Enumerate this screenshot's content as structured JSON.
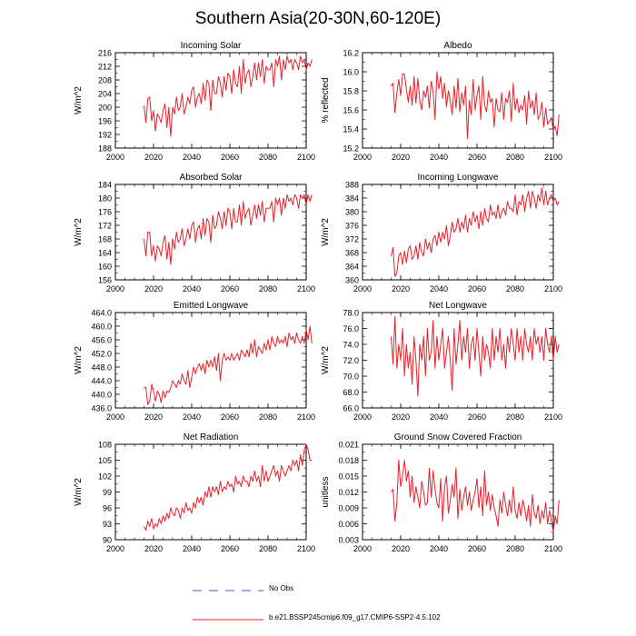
{
  "figure": {
    "title": "Southern Asia(20-30N,60-120E)",
    "legend": [
      {
        "label": "No Obs",
        "style": "dashed",
        "color": "#5a4fcf"
      },
      {
        "label": "b.e21.BSSP245cmip6.f09_g17.CMIP6-SSP2-4.5.102",
        "style": "solid",
        "color": "#e8212a"
      }
    ]
  },
  "chart_data": [
    {
      "type": "line",
      "title": "Incoming Solar",
      "ylabel": "W/m^2",
      "xlim": [
        2000,
        2100
      ],
      "ylim": [
        188,
        216
      ],
      "xticks": [
        "2000",
        "2020",
        "2040",
        "2060",
        "2080",
        "2100"
      ],
      "yticks": [
        "188",
        "192",
        "196",
        "200",
        "204",
        "208",
        "212",
        "216"
      ],
      "series": [
        {
          "name": "b.e21.BSSP245cmip6.f09_g17.CMIP6-SSP2-4.5.102",
          "color": "#e8212a",
          "x_start": 2015,
          "x_step": 1,
          "values": [
            200.5,
            195.5,
            202.5,
            203,
            196,
            199,
            193,
            198,
            197,
            195.5,
            199,
            201,
            194,
            200,
            191.5,
            200,
            198,
            203,
            199,
            200,
            204,
            198,
            200,
            203,
            201,
            205,
            206,
            200,
            203,
            204,
            201,
            207,
            202,
            208,
            207,
            199,
            208,
            204,
            204,
            209,
            207,
            203,
            209,
            205,
            210,
            209,
            204,
            211,
            207,
            206,
            212,
            204,
            214,
            207,
            210,
            211,
            206,
            209,
            213,
            208,
            213,
            209,
            214,
            207,
            212,
            211,
            211,
            213,
            206,
            214,
            212,
            215,
            208,
            214,
            211,
            215,
            213,
            214,
            211,
            214,
            213,
            211,
            215,
            213,
            214,
            211,
            213,
            212,
            214
          ]
        }
      ]
    },
    {
      "type": "line",
      "title": "Albedo",
      "ylabel": "% reflected",
      "xlim": [
        2000,
        2100
      ],
      "ylim": [
        15.2,
        16.2
      ],
      "xticks": [
        "2000",
        "2020",
        "2040",
        "2060",
        "2080",
        "2100"
      ],
      "yticks": [
        "15.2",
        "15.4",
        "15.6",
        "15.8",
        "16.0",
        "16.2"
      ],
      "series": [
        {
          "name": "b.e21.BSSP245cmip6.f09_g17.CMIP6-SSP2-4.5.102",
          "color": "#e8212a",
          "x_start": 2015,
          "x_step": 1,
          "values": [
            15.85,
            15.88,
            15.57,
            15.78,
            15.92,
            15.75,
            15.98,
            15.97,
            15.82,
            15.68,
            15.85,
            15.65,
            15.95,
            15.67,
            15.93,
            15.7,
            15.6,
            15.8,
            15.73,
            15.85,
            15.62,
            15.9,
            15.8,
            15.5,
            16.0,
            15.82,
            15.95,
            15.72,
            15.88,
            15.63,
            15.8,
            15.7,
            15.55,
            15.85,
            15.62,
            15.93,
            15.58,
            15.78,
            15.65,
            15.85,
            15.3,
            15.7,
            15.55,
            15.92,
            15.6,
            15.75,
            15.85,
            15.5,
            15.95,
            15.65,
            15.58,
            15.8,
            15.68,
            15.72,
            15.42,
            15.72,
            15.6,
            15.58,
            15.78,
            15.5,
            15.72,
            15.68,
            15.8,
            15.48,
            15.88,
            15.6,
            15.72,
            15.57,
            15.65,
            15.6,
            15.75,
            15.45,
            15.8,
            15.62,
            15.7,
            15.55,
            15.78,
            15.5,
            15.55,
            15.68,
            15.42,
            15.62,
            15.45,
            15.48,
            15.52,
            15.38,
            15.43,
            15.33,
            15.55
          ]
        }
      ]
    },
    {
      "type": "line",
      "title": "Absorbed Solar",
      "ylabel": "W/m^2",
      "xlim": [
        2000,
        2100
      ],
      "ylim": [
        156,
        184
      ],
      "xticks": [
        "2000",
        "2020",
        "2040",
        "2060",
        "2080",
        "2100"
      ],
      "yticks": [
        "156",
        "160",
        "164",
        "168",
        "172",
        "176",
        "180",
        "184"
      ],
      "series": [
        {
          "name": "b.e21.BSSP245cmip6.f09_g17.CMIP6-SSP2-4.5.102",
          "color": "#e8212a",
          "x_start": 2015,
          "x_step": 1,
          "values": [
            168,
            163,
            170,
            170,
            163,
            166,
            161.5,
            166,
            165,
            163,
            167,
            169,
            162,
            167,
            160.5,
            168,
            165,
            170,
            167,
            168,
            171,
            166,
            168,
            171,
            168,
            172,
            173,
            167,
            171,
            172,
            168,
            174,
            169,
            174,
            173,
            167,
            175,
            171,
            172,
            176,
            174,
            171,
            176,
            172,
            177,
            176,
            171,
            177,
            173,
            173,
            178,
            172,
            179,
            174,
            176,
            177,
            172,
            175,
            178,
            174,
            178,
            175,
            179,
            173,
            177,
            177,
            177,
            179,
            173,
            180,
            178,
            180,
            175,
            180,
            177,
            181,
            179,
            180,
            178,
            181,
            180,
            177,
            181,
            180,
            181,
            178,
            181,
            179,
            181
          ]
        }
      ]
    },
    {
      "type": "line",
      "title": "Incoming Longwave",
      "ylabel": "W/m^2",
      "xlim": [
        2000,
        2100
      ],
      "ylim": [
        360,
        388
      ],
      "xticks": [
        "2000",
        "2020",
        "2040",
        "2060",
        "2080",
        "2100"
      ],
      "yticks": [
        "360",
        "364",
        "368",
        "372",
        "376",
        "380",
        "384",
        "388"
      ],
      "series": [
        {
          "name": "b.e21.BSSP245cmip6.f09_g17.CMIP6-SSP2-4.5.102",
          "color": "#e8212a",
          "x_start": 2015,
          "x_step": 1,
          "values": [
            367,
            369.5,
            361,
            362,
            367,
            368,
            364.5,
            368.5,
            365,
            369,
            370,
            366,
            367,
            370,
            366,
            371,
            368,
            367,
            372,
            369,
            371,
            368,
            372,
            373,
            370,
            374,
            371,
            374,
            372,
            376,
            370,
            373,
            377,
            374,
            375,
            378,
            374,
            377,
            375,
            379,
            374,
            378,
            376,
            380,
            377,
            379,
            375,
            380,
            376,
            381,
            378,
            377,
            382,
            379,
            380,
            378,
            382,
            378,
            380,
            381,
            379,
            383,
            381,
            381,
            380,
            385,
            379,
            383,
            382,
            385,
            380,
            384,
            386,
            381,
            386,
            384,
            381,
            385,
            383,
            387,
            382,
            386,
            382,
            384,
            385,
            383,
            384,
            382,
            383
          ]
        }
      ]
    },
    {
      "type": "line",
      "title": "Emitted Longwave",
      "ylabel": "W/m^2",
      "xlim": [
        2000,
        2100
      ],
      "ylim": [
        436,
        464
      ],
      "xticks": [
        "2000",
        "2020",
        "2040",
        "2060",
        "2080",
        "2100"
      ],
      "yticks": [
        "436.0",
        "440.0",
        "444.0",
        "448.0",
        "452.0",
        "456.0",
        "460.0",
        "464.0"
      ],
      "series": [
        {
          "name": "b.e21.BSSP245cmip6.f09_g17.CMIP6-SSP2-4.5.102",
          "color": "#e8212a",
          "x_start": 2015,
          "x_step": 1,
          "values": [
            442,
            442,
            437,
            438,
            443,
            441,
            438,
            441,
            440,
            437.5,
            441,
            439,
            441,
            440.5,
            442,
            444,
            443,
            442,
            444,
            443,
            446,
            444,
            443,
            447,
            442,
            445,
            448,
            446,
            448,
            449,
            447,
            449,
            446,
            450,
            448,
            450,
            448,
            451,
            447,
            452,
            444,
            450,
            452,
            450,
            451,
            450,
            452,
            450,
            451,
            452,
            450,
            453,
            452,
            451,
            453,
            451,
            455,
            452,
            456,
            451,
            454,
            453,
            452,
            455,
            453,
            456,
            453,
            457,
            455,
            454,
            457,
            455,
            456,
            455,
            457,
            454,
            458,
            456,
            457,
            455,
            458,
            456,
            455,
            457,
            455,
            459,
            456,
            460,
            455
          ]
        }
      ]
    },
    {
      "type": "line",
      "title": "Net Longwave",
      "ylabel": "W/m^2",
      "xlim": [
        2000,
        2100
      ],
      "ylim": [
        66,
        78
      ],
      "xticks": [
        "2000",
        "2020",
        "2040",
        "2060",
        "2080",
        "2100"
      ],
      "yticks": [
        "66.0",
        "68.0",
        "70.0",
        "72.0",
        "74.0",
        "76.0",
        "78.0"
      ],
      "series": [
        {
          "name": "b.e21.BSSP245cmip6.f09_g17.CMIP6-SSP2-4.5.102",
          "color": "#e8212a",
          "x_start": 2015,
          "x_step": 1,
          "values": [
            75,
            71.5,
            77.5,
            71,
            74,
            72,
            76,
            70,
            74,
            71,
            73,
            69,
            75,
            72,
            67.5,
            74,
            72,
            75,
            70,
            76,
            72,
            73,
            77,
            71,
            75,
            72,
            74,
            76,
            71,
            73,
            75,
            72,
            68.2,
            76,
            71.5,
            74,
            77,
            72,
            75,
            73,
            76,
            71,
            74,
            75,
            72,
            76,
            73,
            70,
            75,
            72,
            74,
            73,
            71,
            76,
            72,
            75,
            73,
            76,
            72,
            74,
            71,
            75,
            73,
            76,
            74,
            72,
            76,
            73,
            75,
            72,
            76,
            74,
            73,
            75,
            72,
            76,
            74,
            75,
            73,
            75,
            72,
            76,
            74,
            73,
            75,
            72,
            75,
            73,
            74
          ]
        }
      ]
    },
    {
      "type": "line",
      "title": "Net Radiation",
      "ylabel": "W/m^2",
      "xlim": [
        2000,
        2100
      ],
      "ylim": [
        90,
        108
      ],
      "xticks": [
        "2000",
        "2020",
        "2040",
        "2060",
        "2080",
        "2100"
      ],
      "yticks": [
        "90",
        "93",
        "96",
        "99",
        "102",
        "105",
        "108"
      ],
      "series": [
        {
          "name": "b.e21.BSSP245cmip6.f09_g17.CMIP6-SSP2-4.5.102",
          "color": "#e8212a",
          "x_start": 2015,
          "x_step": 1,
          "values": [
            92.5,
            91.8,
            93.5,
            92.5,
            94,
            92,
            93,
            92.5,
            94,
            93,
            94.5,
            93.5,
            95,
            94,
            96,
            95,
            94.5,
            96,
            95.5,
            94,
            96,
            95,
            97,
            95.5,
            96,
            95,
            97,
            96,
            98,
            97,
            98,
            96.5,
            99,
            98,
            100,
            98,
            100,
            99,
            100,
            98.5,
            101,
            99,
            100,
            99.5,
            101,
            100,
            100.5,
            99,
            102,
            100.5,
            101,
            100,
            102,
            101,
            101,
            100,
            102,
            101,
            103,
            101,
            102,
            100,
            104,
            101,
            103,
            101,
            102,
            103,
            104,
            102,
            103,
            101,
            104,
            103,
            102,
            103,
            104,
            103,
            105,
            104,
            105,
            103,
            106,
            104,
            107,
            108,
            107,
            105,
            105
          ]
        }
      ]
    },
    {
      "type": "line",
      "title": "Ground Snow Covered Fraction",
      "ylabel": "unitless",
      "xlim": [
        2000,
        2100
      ],
      "ylim": [
        0.003,
        0.021
      ],
      "xticks": [
        "2000",
        "2020",
        "2040",
        "2060",
        "2080",
        "2100"
      ],
      "yticks": [
        "0.003",
        "0.006",
        "0.009",
        "0.012",
        "0.015",
        "0.018",
        "0.021"
      ],
      "series": [
        {
          "name": "b.e21.BSSP245cmip6.f09_g17.CMIP6-SSP2-4.5.102",
          "color": "#e8212a",
          "x_start": 2015,
          "x_step": 1,
          "values": [
            0.012,
            0.0125,
            0.0065,
            0.01,
            0.018,
            0.013,
            0.015,
            0.018,
            0.014,
            0.016,
            0.011,
            0.015,
            0.01,
            0.013,
            0.011,
            0.009,
            0.014,
            0.012,
            0.0095,
            0.01,
            0.0165,
            0.011,
            0.016,
            0.0125,
            0.01,
            0.009,
            0.0145,
            0.0065,
            0.013,
            0.015,
            0.008,
            0.0105,
            0.0135,
            0.011,
            0.0165,
            0.007,
            0.0125,
            0.0085,
            0.011,
            0.013,
            0.0095,
            0.012,
            0.0085,
            0.0105,
            0.012,
            0.0145,
            0.009,
            0.013,
            0.0075,
            0.016,
            0.0095,
            0.012,
            0.0085,
            0.0115,
            0.009,
            0.0075,
            0.0055,
            0.0105,
            0.008,
            0.012,
            0.0095,
            0.0075,
            0.0105,
            0.008,
            0.013,
            0.0085,
            0.007,
            0.01,
            0.0075,
            0.0105,
            0.009,
            0.0065,
            0.0095,
            0.0055,
            0.0115,
            0.008,
            0.007,
            0.0095,
            0.006,
            0.0085,
            0.007,
            0.01,
            0.006,
            0.0085,
            0.0065,
            0.0045,
            0.0075,
            0.006,
            0.0105
          ]
        }
      ]
    }
  ]
}
